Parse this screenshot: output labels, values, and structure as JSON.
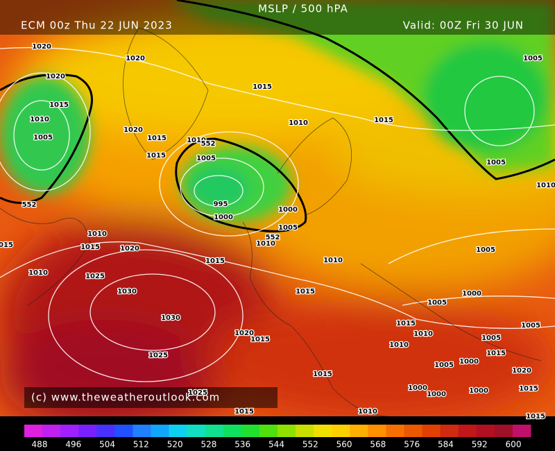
{
  "header": {
    "title": "MSLP / 500 hPA",
    "run": "ECM 00z Thu 22 JUN 2023",
    "valid": "Valid: 00Z Fri 30 JUN"
  },
  "credit": "(c) www.theweatheroutlook.com",
  "isobar_labels": [
    "1020",
    "1020",
    "1020",
    "1015",
    "1010",
    "1005",
    "1015",
    "1020",
    "1015",
    "1015",
    "1010",
    "1005",
    "995",
    "1000",
    "1010",
    "1015",
    "1005",
    "1005",
    "1010",
    "1000",
    "1005",
    "1010",
    "1010",
    "1015",
    "1020",
    "1015",
    "1010",
    "1025",
    "1030",
    "1030",
    "1025",
    "1020",
    "1015",
    "1015",
    "1010",
    "1005",
    "1005",
    "1000",
    "1015",
    "1010",
    "1010",
    "1005",
    "1005",
    "1015",
    "1000",
    "1005",
    "1020",
    "1015",
    "1000",
    "1000",
    "1000",
    "1015",
    "1025",
    "1015",
    "1010",
    "1015",
    "1015"
  ],
  "height_labels": [
    "552",
    "552",
    "552"
  ],
  "colorbar": {
    "ticks": [
      488,
      496,
      504,
      512,
      520,
      528,
      536,
      544,
      552,
      560,
      568,
      576,
      584,
      592,
      600
    ],
    "colors": [
      "#e020e0",
      "#c020f0",
      "#a020ff",
      "#7a20ff",
      "#4a30ff",
      "#2050ff",
      "#2080ff",
      "#10a8ff",
      "#10d0f0",
      "#10e0c0",
      "#10e090",
      "#10e060",
      "#20e030",
      "#50e010",
      "#90e000",
      "#c8e000",
      "#f0e000",
      "#ffd000",
      "#ffb000",
      "#ff9000",
      "#f57000",
      "#ea5800",
      "#e04000",
      "#d02a10",
      "#c01818",
      "#b01020",
      "#a01028",
      "#c0106a"
    ]
  }
}
